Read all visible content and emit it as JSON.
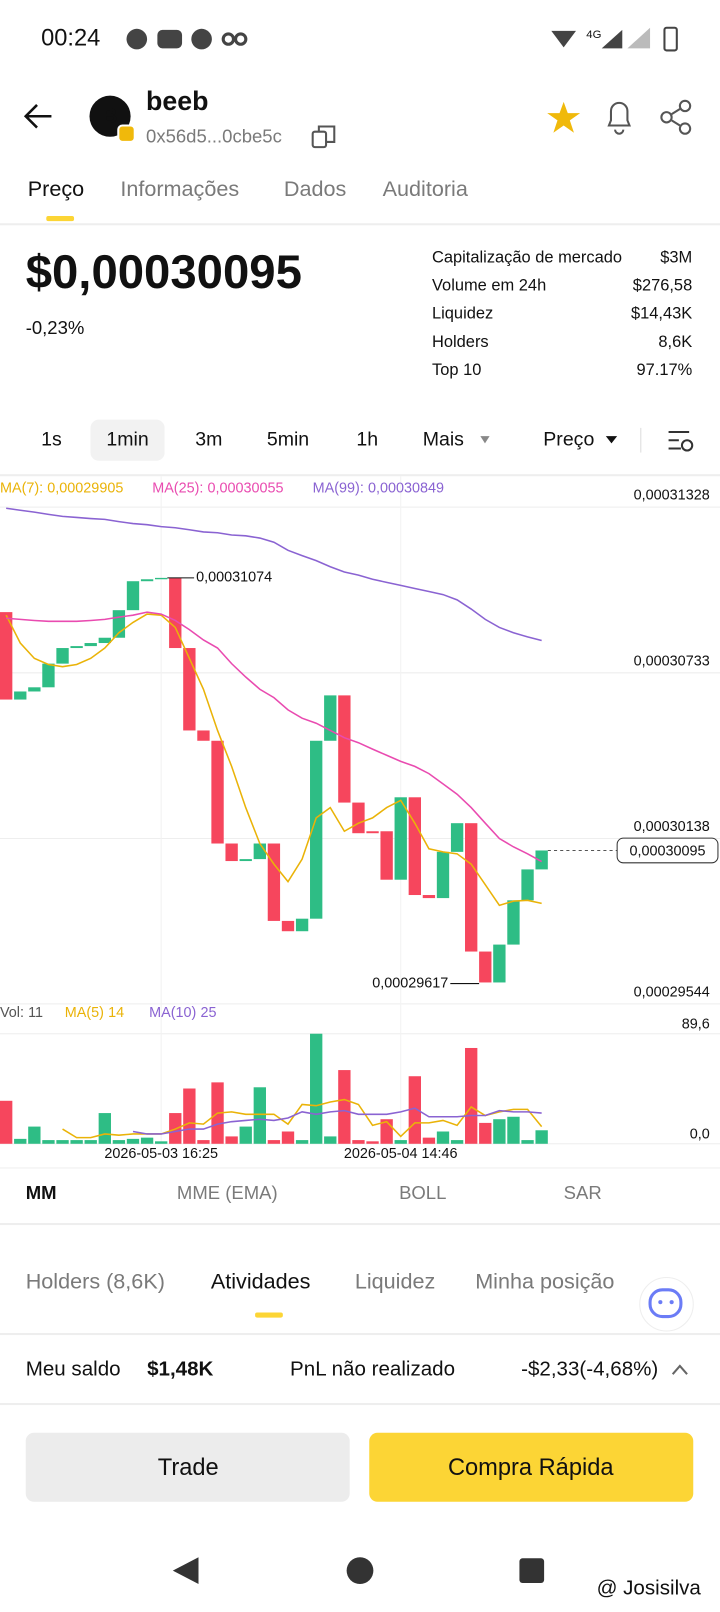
{
  "status_bar": {
    "time": "00:24",
    "network": "4G"
  },
  "header": {
    "avatar": "B",
    "token": "beeb",
    "address": "0x56d5...0cbe5c"
  },
  "tabs": [
    "Preço",
    "Informações",
    "Dados",
    "Auditoria"
  ],
  "price": {
    "value": "$0,00030095",
    "change": "-0,23%"
  },
  "stats": [
    {
      "label": "Capitalização de mercado",
      "value": "$3M"
    },
    {
      "label": "Volume em 24h",
      "value": "$276,58"
    },
    {
      "label": "Liquidez",
      "value": "$14,43K"
    },
    {
      "label": "Holders",
      "value": "8,6K"
    },
    {
      "label": "Top 10",
      "value": "97.17%"
    }
  ],
  "intervals": [
    "1s",
    "1min",
    "3m",
    "5min",
    "1h",
    "Mais"
  ],
  "price_mode": "Preço",
  "chart_data": {
    "type": "candlestick",
    "up_color": "#2ebd85",
    "down_color": "#f6465d",
    "categories": [
      null,
      null,
      null,
      null,
      null,
      null,
      null,
      null,
      null,
      null,
      null,
      "2026-05-03 16:25",
      null,
      null,
      null,
      null,
      null,
      null,
      null,
      null,
      null,
      null,
      null,
      null,
      null,
      null,
      null,
      null,
      "2026-05-04 14:46",
      null,
      null,
      null,
      null,
      null,
      null,
      null,
      null,
      null,
      null
    ],
    "open": [
      0.00030951,
      0.00030637,
      0.00030666,
      0.00030681,
      0.00030766,
      0.00030822,
      0.00030829,
      0.0003084,
      0.00030859,
      0.00030958,
      0.00031062,
      0.00031069,
      0.00031073,
      0.00030822,
      0.00030526,
      0.00030489,
      0.0003012,
      0.00030057,
      0.00030064,
      0.0003012,
      0.00029842,
      0.00029805,
      0.0002985,
      0.00030489,
      0.00030652,
      0.00030267,
      0.00030164,
      0.00030164,
      0.0002999,
      0.00030286,
      0.00029935,
      0.00029924,
      0.0003009,
      0.00030193,
      0.00029732,
      0.00029621,
      0.00029757,
      0.00029916,
      0.00030027
    ],
    "close": [
      0.00030637,
      0.00030666,
      0.00030681,
      0.00030766,
      0.00030822,
      0.00030829,
      0.0003084,
      0.00030859,
      0.00030958,
      0.00031062,
      0.00031069,
      0.00031074,
      0.00030822,
      0.00030526,
      0.00030489,
      0.0003012,
      0.00030057,
      0.00030064,
      0.0003012,
      0.00029842,
      0.00029805,
      0.0002985,
      0.00030489,
      0.00030652,
      0.00030267,
      0.00030157,
      0.00030157,
      0.0002999,
      0.00030286,
      0.00029935,
      0.00029924,
      0.0003009,
      0.00030193,
      0.00029732,
      0.00029621,
      0.00029757,
      0.00029916,
      0.00030027,
      0.00030095
    ],
    "ma": [
      {
        "name": "MA(7):",
        "color": "#eab308",
        "legend_value": {
          "value": 0.00029905,
          "label": "0,00029905"
        },
        "values": [
          0.0003094,
          0.0003084,
          0.00030785,
          0.00030763,
          0.00030755,
          0.00030763,
          0.00030785,
          0.00030822,
          0.00030877,
          0.00030914,
          0.00030944,
          0.0003094,
          0.00030896,
          0.00030785,
          0.00030674,
          0.00030526,
          0.00030397,
          0.00030249,
          0.0003012,
          0.00030046,
          0.00029983,
          0.00030064,
          0.00030212,
          0.00030249,
          0.00030164,
          0.00030193,
          0.00030212,
          0.00030249,
          0.00030275,
          0.00030193,
          0.00030101,
          0.0003009,
          0.00030083,
          0.00030046,
          0.00029972,
          0.00029898,
          0.00029913,
          0.00029916,
          0.00029905
        ]
      },
      {
        "name": "MA(25):",
        "color": "#e94bb0",
        "legend_value": {
          "value": 0.00030055,
          "label": "0,00030055"
        },
        "values": [
          0.00030929,
          0.00030925,
          0.00030921,
          0.00030918,
          0.00030918,
          0.00030918,
          0.00030921,
          0.00030925,
          0.00030933,
          0.0003094,
          0.00030951,
          0.00030944,
          0.00030921,
          0.00030888,
          0.00030851,
          0.00030822,
          0.00030766,
          0.00030718,
          0.00030674,
          0.00030644,
          0.000306,
          0.0003057,
          0.00030552,
          0.00030526,
          0.000305,
          0.00030482,
          0.00030459,
          0.00030437,
          0.00030415,
          0.00030397,
          0.00030371,
          0.00030334,
          0.00030297,
          0.00030249,
          0.00030193,
          0.00030138,
          0.00030108,
          0.00030083,
          0.00030055
        ]
      },
      {
        "name": "MA(99):",
        "color": "#8a63d2",
        "legend_value": {
          "value": 0.00030849,
          "label": "0,00030849"
        },
        "values": [
          0.00031324,
          0.00031317,
          0.0003131,
          0.00031302,
          0.00031295,
          0.00031291,
          0.00031287,
          0.00031284,
          0.00031276,
          0.00031269,
          0.00031265,
          0.00031258,
          0.00031254,
          0.00031247,
          0.00031239,
          0.00031236,
          0.00031228,
          0.00031225,
          0.00031217,
          0.00031202,
          0.00031173,
          0.00031154,
          0.00031136,
          0.00031114,
          0.00031095,
          0.00031084,
          0.00031069,
          0.00031058,
          0.00031047,
          0.00031036,
          0.00031025,
          0.00031014,
          0.00030995,
          0.00030962,
          0.00030925,
          0.00030896,
          0.00030877,
          0.00030862,
          0.00030849
        ]
      }
    ],
    "ylim": [
      0.00029544,
      0.00031439
    ],
    "yticks": [
      {
        "value": 0.00031328,
        "label": "0,00031328"
      },
      {
        "value": 0.00030733,
        "label": "0,00030733"
      },
      {
        "value": 0.00030138,
        "label": "0,00030138"
      },
      {
        "value": 0.00029544,
        "label": "0,00029544"
      }
    ],
    "high": {
      "value": 0.00031074,
      "label": "0,00031074"
    },
    "low": {
      "value": 0.00029617,
      "label": "0,00029617"
    },
    "current": {
      "value": 0.00030095,
      "label": "0,00030095"
    },
    "grid": true,
    "volume": {
      "name": "Vol:",
      "last": 11,
      "values": [
        35,
        4,
        14,
        3,
        3,
        3,
        3,
        25,
        3,
        4,
        5,
        2,
        25,
        45,
        3,
        50,
        6,
        14,
        46,
        3,
        10,
        3,
        89.6,
        6,
        60,
        3,
        2,
        20,
        3,
        55,
        5,
        10,
        3,
        78,
        17,
        20,
        22,
        3,
        11
      ],
      "ma": [
        {
          "name": "MA(5)",
          "color": "#eab308",
          "last": 14,
          "values": [
            null,
            null,
            null,
            null,
            12,
            5,
            5,
            8,
            7,
            8,
            8,
            8,
            12,
            17,
            16,
            25,
            26,
            24,
            24,
            24,
            16,
            32,
            31,
            34,
            36,
            32,
            15,
            18,
            6,
            17,
            17,
            19,
            15,
            30,
            23,
            26,
            28,
            28,
            14
          ]
        },
        {
          "name": "MA(10)",
          "color": "#8a63d2",
          "last": 25,
          "values": [
            null,
            null,
            null,
            null,
            null,
            null,
            null,
            null,
            null,
            10,
            8,
            8,
            10,
            12,
            12,
            16,
            18,
            19,
            20,
            19,
            21,
            26,
            24,
            26,
            27,
            24,
            24,
            24,
            26,
            29,
            22,
            22,
            22,
            23,
            23,
            27,
            26,
            26,
            25
          ]
        }
      ],
      "ylim": [
        0,
        89.6
      ],
      "yticks": [
        {
          "value": 89.6,
          "label": "89,6"
        },
        {
          "value": 0,
          "label": "0,0"
        }
      ]
    }
  },
  "indicator_tabs": [
    "MM",
    "MME (EMA)",
    "BOLL",
    "SAR"
  ],
  "bottom_tabs": [
    "Holders (8,6K)",
    "Atividades",
    "Liquidez",
    "Minha posição"
  ],
  "balance": {
    "label": "Meu saldo",
    "value": "$1,48K",
    "pnl_label": "PnL não realizado",
    "pnl_value": "-$2,33(-4,68%)"
  },
  "buttons": [
    "Trade",
    "Compra Rápida"
  ],
  "watermark": "@ Josisilva"
}
